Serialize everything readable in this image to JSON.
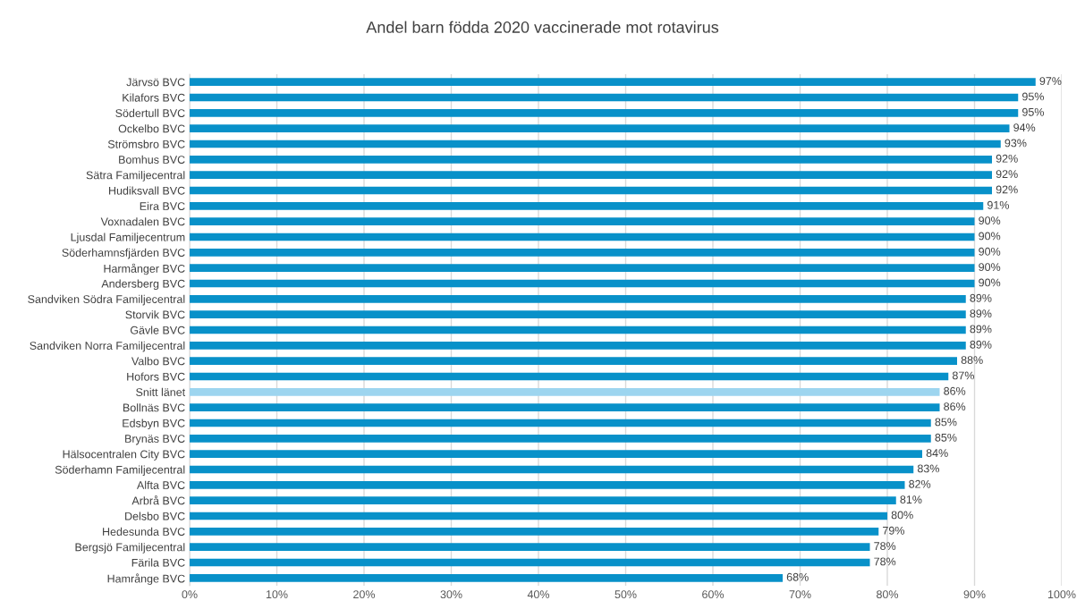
{
  "chart_data": {
    "type": "bar",
    "orientation": "horizontal",
    "title": "Andel barn födda 2020 vaccinerade mot rotavirus",
    "categories": [
      "Järvsö BVC",
      "Kilafors BVC",
      "Södertull BVC",
      "Ockelbo BVC",
      "Strömsbro BVC",
      "Bomhus BVC",
      "Sätra Familjecentral",
      "Hudiksvall BVC",
      "Eira BVC",
      "Voxnadalen BVC",
      "Ljusdal Familjecentrum",
      "Söderhamnsfjärden BVC",
      "Harmånger BVC",
      "Andersberg BVC",
      "Sandviken Södra Familjecentral",
      "Storvik BVC",
      "Gävle BVC",
      "Sandviken Norra Familjecentral",
      "Valbo BVC",
      "Hofors BVC",
      "Snitt länet",
      "Bollnäs BVC",
      "Edsbyn BVC",
      "Brynäs BVC",
      "Hälsocentralen City BVC",
      "Söderhamn Familjecentral",
      "Alfta BVC",
      "Arbrå BVC",
      "Delsbo BVC",
      "Hedesunda BVC",
      "Bergsjö Familjecentral",
      "Färila BVC",
      "Hamrånge BVC"
    ],
    "values": [
      97,
      95,
      95,
      94,
      93,
      92,
      92,
      92,
      91,
      90,
      90,
      90,
      90,
      90,
      89,
      89,
      89,
      89,
      88,
      87,
      86,
      86,
      85,
      85,
      84,
      83,
      82,
      81,
      80,
      79,
      78,
      78,
      68
    ],
    "value_labels": [
      "97%",
      "95%",
      "95%",
      "94%",
      "93%",
      "92%",
      "92%",
      "92%",
      "91%",
      "90%",
      "90%",
      "90%",
      "90%",
      "90%",
      "89%",
      "89%",
      "89%",
      "89%",
      "88%",
      "87%",
      "86%",
      "86%",
      "85%",
      "85%",
      "84%",
      "83%",
      "82%",
      "81%",
      "80%",
      "79%",
      "78%",
      "78%",
      "68%"
    ],
    "colors": [
      "#0891c9",
      "#0891c9",
      "#0891c9",
      "#0891c9",
      "#0891c9",
      "#0891c9",
      "#0891c9",
      "#0891c9",
      "#0891c9",
      "#0891c9",
      "#0891c9",
      "#0891c9",
      "#0891c9",
      "#0891c9",
      "#0891c9",
      "#0891c9",
      "#0891c9",
      "#0891c9",
      "#0891c9",
      "#0891c9",
      "#9dd5ef",
      "#0891c9",
      "#0891c9",
      "#0891c9",
      "#0891c9",
      "#0891c9",
      "#0891c9",
      "#0891c9",
      "#0891c9",
      "#0891c9",
      "#0891c9",
      "#0891c9",
      "#0891c9"
    ],
    "xlim": [
      0,
      100
    ],
    "xticks": [
      {
        "value": 0,
        "label": "0%"
      },
      {
        "value": 10,
        "label": "10%"
      },
      {
        "value": 20,
        "label": "20%"
      },
      {
        "value": 30,
        "label": "30%"
      },
      {
        "value": 40,
        "label": "40%"
      },
      {
        "value": 50,
        "label": "50%"
      },
      {
        "value": 60,
        "label": "60%"
      },
      {
        "value": 70,
        "label": "70%"
      },
      {
        "value": 80,
        "label": "80%"
      },
      {
        "value": 90,
        "label": "90%"
      },
      {
        "value": 100,
        "label": "100%"
      }
    ],
    "grid": "x",
    "legend": false
  }
}
